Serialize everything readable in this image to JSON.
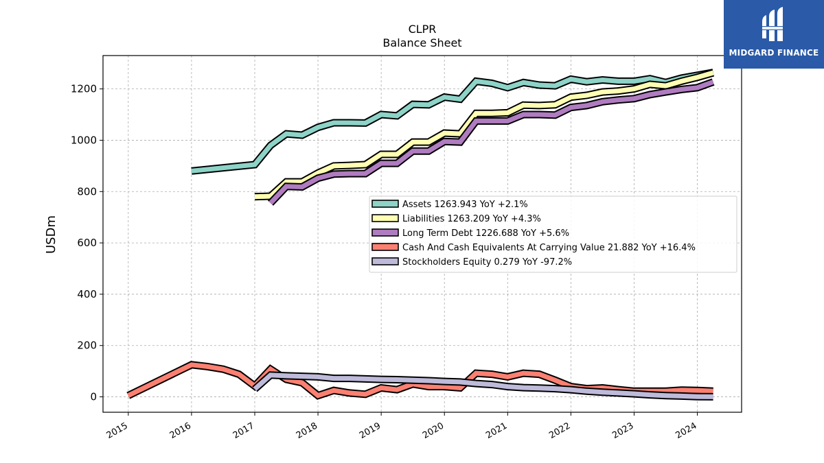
{
  "chart_data": {
    "type": "line",
    "title": "CLPR",
    "subtitle": "Balance  Sheet",
    "ylabel": "USDm",
    "xlabel": "",
    "ylim": [
      -60,
      1330
    ],
    "xlim": [
      2014.6,
      2024.7
    ],
    "yticks": [
      0,
      200,
      400,
      600,
      800,
      1000,
      1200
    ],
    "xticks": [
      "2015",
      "2016",
      "2017",
      "2018",
      "2019",
      "2020",
      "2021",
      "2022",
      "2023",
      "2024"
    ],
    "grid": true,
    "legend_position": "center-right",
    "series": [
      {
        "name": "Assets  1263.943 YoY +2.1%",
        "color": "#8dd3c7",
        "x": [
          2016.0,
          2017.0,
          2017.25,
          2017.5,
          2017.75,
          2018.0,
          2018.25,
          2018.5,
          2018.75,
          2019.0,
          2019.25,
          2019.5,
          2019.75,
          2020.0,
          2020.25,
          2020.5,
          2020.75,
          2021.0,
          2021.25,
          2021.5,
          2021.75,
          2022.0,
          2022.25,
          2022.5,
          2022.75,
          2023.0,
          2023.25,
          2023.5,
          2023.75,
          2024.0,
          2024.25
        ],
        "y": [
          880,
          905,
          980,
          1025,
          1020,
          1050,
          1068,
          1068,
          1067,
          1100,
          1095,
          1140,
          1138,
          1168,
          1160,
          1230,
          1222,
          1205,
          1225,
          1215,
          1212,
          1238,
          1228,
          1235,
          1230,
          1230,
          1240,
          1225,
          1242,
          1253,
          1264
        ]
      },
      {
        "name": "Liabilities  1263.209 YoY +4.3%",
        "color": "#ffffb3",
        "x": [
          2017.0,
          2017.25,
          2017.5,
          2017.75,
          2018.0,
          2018.25,
          2018.5,
          2018.75,
          2019.0,
          2019.25,
          2019.5,
          2019.75,
          2020.0,
          2020.25,
          2020.5,
          2020.75,
          2021.0,
          2021.25,
          2021.5,
          2021.75,
          2022.0,
          2022.25,
          2022.5,
          2022.75,
          2023.0,
          2023.25,
          2023.5,
          2023.75,
          2024.0,
          2024.25
        ],
        "y": [
          780,
          782,
          838,
          838,
          872,
          900,
          902,
          905,
          945,
          945,
          993,
          993,
          1028,
          1025,
          1105,
          1105,
          1107,
          1137,
          1135,
          1138,
          1168,
          1175,
          1188,
          1192,
          1200,
          1218,
          1212,
          1230,
          1245,
          1263
        ]
      },
      {
        "name": "Long Term Debt  1226.688 YoY +5.6%",
        "color": "#bebada",
        "draw_color": "#b07cc0",
        "x": [
          2017.25,
          2017.5,
          2017.75,
          2018.0,
          2018.25,
          2018.5,
          2018.75,
          2019.0,
          2019.25,
          2019.5,
          2019.75,
          2020.0,
          2020.25,
          2020.5,
          2020.75,
          2021.0,
          2021.25,
          2021.5,
          2021.75,
          2022.0,
          2022.25,
          2022.5,
          2022.75,
          2023.0,
          2023.25,
          2023.5,
          2023.75,
          2024.0,
          2024.25
        ],
        "y": [
          755,
          820,
          818,
          852,
          868,
          870,
          870,
          910,
          910,
          958,
          958,
          995,
          993,
          1075,
          1075,
          1075,
          1100,
          1100,
          1098,
          1128,
          1135,
          1150,
          1157,
          1162,
          1178,
          1188,
          1198,
          1205,
          1227
        ]
      },
      {
        "name": "Cash And Cash Equivalents At Carrying Value  21.882 YoY +16.4%",
        "color": "#fb8072",
        "x": [
          2015.0,
          2016.0,
          2016.25,
          2016.5,
          2016.75,
          2017.0,
          2017.25,
          2017.5,
          2017.75,
          2018.0,
          2018.25,
          2018.5,
          2018.75,
          2019.0,
          2019.25,
          2019.5,
          2019.75,
          2020.0,
          2020.25,
          2020.5,
          2020.75,
          2021.0,
          2021.25,
          2021.5,
          2021.75,
          2022.0,
          2022.25,
          2022.5,
          2022.75,
          2023.0,
          2023.25,
          2023.5,
          2023.75,
          2024.0,
          2024.25
        ],
        "y": [
          5,
          125,
          118,
          108,
          88,
          42,
          108,
          68,
          55,
          5,
          25,
          15,
          10,
          35,
          28,
          50,
          40,
          40,
          35,
          92,
          88,
          78,
          92,
          88,
          65,
          40,
          32,
          35,
          28,
          22,
          22,
          22,
          26,
          25,
          22
        ]
      },
      {
        "name": "Stockholders Equity  0.279 YoY -97.2%",
        "color": "#bebada",
        "x": [
          2017.0,
          2017.25,
          2017.5,
          2017.75,
          2018.0,
          2018.25,
          2018.5,
          2018.75,
          2019.0,
          2019.25,
          2019.5,
          2019.75,
          2020.0,
          2020.25,
          2020.5,
          2020.75,
          2021.0,
          2021.25,
          2021.5,
          2021.75,
          2022.0,
          2022.25,
          2022.5,
          2022.75,
          2023.0,
          2023.25,
          2023.5,
          2023.75,
          2024.0,
          2024.25
        ],
        "y": [
          30,
          85,
          82,
          80,
          78,
          72,
          72,
          70,
          68,
          67,
          65,
          63,
          60,
          58,
          52,
          48,
          40,
          36,
          34,
          32,
          28,
          22,
          18,
          15,
          12,
          8,
          5,
          3,
          1,
          0.3
        ]
      }
    ]
  },
  "brand": {
    "name": "MIDGARD FINANCE",
    "color": "#2a5aa8"
  }
}
